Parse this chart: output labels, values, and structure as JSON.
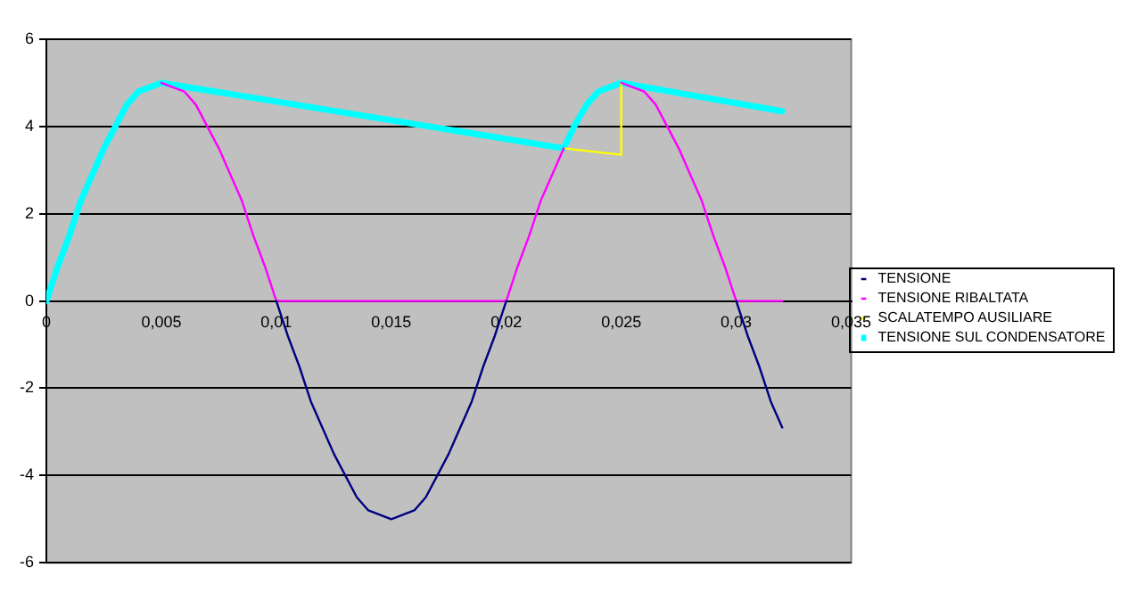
{
  "chart_data": {
    "type": "line",
    "x": [
      0.005,
      0.0055,
      0.006,
      0.0065,
      0.007,
      0.0075,
      0.008,
      0.0085,
      0.009,
      0.0095,
      0.01,
      0.0105,
      0.011,
      0.0115,
      0.012,
      0.0125,
      0.013,
      0.0135,
      0.014,
      0.0145,
      0.015,
      0.0155,
      0.016,
      0.0165,
      0.017,
      0.0175,
      0.018,
      0.0185,
      0.019,
      0.0195,
      0.02,
      0.0205,
      0.021,
      0.0215,
      0.022,
      0.0225,
      0.023,
      0.0235,
      0.024,
      0.0245,
      0.025,
      0.0255,
      0.026,
      0.0265,
      0.027,
      0.0275,
      0.028,
      0.0285,
      0.029,
      0.0295,
      0.03,
      0.0305,
      0.031,
      0.0315,
      0.032
    ],
    "series": [
      {
        "name": "TENSIONE",
        "color": "#000080",
        "values": [
          null,
          null,
          null,
          null,
          null,
          null,
          null,
          null,
          null,
          null,
          0,
          -0.8,
          -1.5,
          -2.3,
          -2.9,
          -3.5,
          -4,
          -4.5,
          -4.8,
          -4.9,
          -5,
          -4.9,
          -4.8,
          -4.5,
          -4,
          -3.5,
          -2.9,
          -2.3,
          -1.5,
          -0.8,
          0,
          null,
          null,
          null,
          null,
          null,
          null,
          null,
          null,
          null,
          null,
          null,
          null,
          null,
          null,
          null,
          null,
          null,
          null,
          null,
          0,
          -0.8,
          -1.5,
          -2.3,
          -2.9
        ]
      },
      {
        "name": "TENSIONE RIBALTATA",
        "color": "#ff00ff",
        "values": [
          5,
          4.9,
          4.8,
          4.5,
          4,
          3.5,
          2.9,
          2.3,
          1.5,
          0.8,
          0,
          0,
          0,
          0,
          0,
          0,
          0,
          0,
          0,
          0,
          0,
          0,
          0,
          0,
          0,
          0,
          0,
          0,
          0,
          0,
          0,
          0.8,
          1.5,
          2.3,
          2.9,
          3.5,
          null,
          null,
          null,
          null,
          5,
          4.9,
          4.8,
          4.5,
          4,
          3.5,
          2.9,
          2.3,
          1.5,
          0.8,
          0,
          0,
          0,
          0,
          0
        ]
      },
      {
        "name": "SCALATEMPO AUSILIARE",
        "color": "#ffff00",
        "x": [
          0.0225,
          0.025,
          0.025
        ],
        "values": [
          3.5,
          3.35,
          5
        ]
      },
      {
        "name": "TENSIONE SUL CONDENSATORE",
        "color": "#00ffff",
        "x": [
          0,
          0.0005,
          0.001,
          0.0015,
          0.002,
          0.0025,
          0.003,
          0.0035,
          0.004,
          0.0045,
          0.005,
          0.0225,
          0.023,
          0.0235,
          0.024,
          0.0245,
          0.025,
          0.032
        ],
        "values": [
          0,
          0.8,
          1.5,
          2.3,
          2.9,
          3.5,
          4,
          4.5,
          4.8,
          4.9,
          5,
          3.5,
          4.05,
          4.5,
          4.8,
          4.9,
          5,
          4.35
        ]
      }
    ],
    "xlim": [
      0,
      0.035
    ],
    "xticks": [
      0,
      {
        "value": 0.005,
        "label": "0,005"
      },
      {
        "value": 0.01,
        "label": "0,01"
      },
      {
        "value": 0.015,
        "label": "0,015"
      },
      {
        "value": 0.02,
        "label": "0,02"
      },
      {
        "value": 0.025,
        "label": "0,025"
      },
      {
        "value": 0.03,
        "label": "0,03"
      },
      {
        "value": 0.035,
        "label": "0,035"
      }
    ],
    "ylim": [
      -6,
      6
    ],
    "yticks": [
      -6,
      -4,
      -2,
      0,
      2,
      4,
      6
    ],
    "grid": "y",
    "legend": "right",
    "marker": "none",
    "line_style": "solid"
  }
}
